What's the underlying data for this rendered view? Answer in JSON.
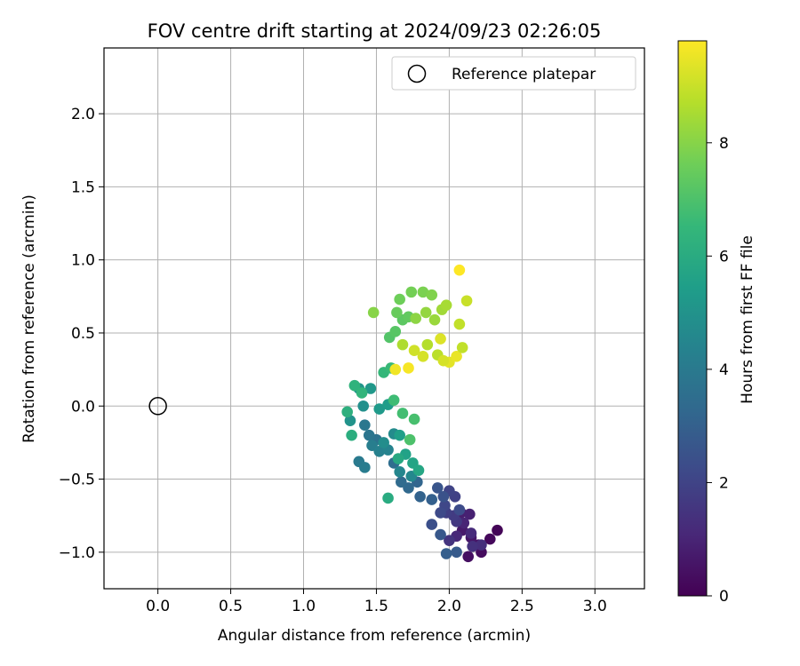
{
  "chart_data": {
    "type": "scatter",
    "title": "FOV centre drift starting at 2024/09/23 02:26:05",
    "xlabel": "Angular distance from reference (arcmin)",
    "ylabel": "Rotation from reference (arcmin)",
    "xlim": [
      -0.37,
      3.34
    ],
    "ylim": [
      -1.25,
      2.45
    ],
    "x_ticks": [
      0.0,
      0.5,
      1.0,
      1.5,
      2.0,
      2.5,
      3.0
    ],
    "x_tick_labels": [
      "0.0",
      "0.5",
      "1.0",
      "1.5",
      "2.0",
      "2.5",
      "3.0"
    ],
    "y_ticks": [
      -1.0,
      -0.5,
      0.0,
      0.5,
      1.0,
      1.5,
      2.0
    ],
    "y_tick_labels": [
      "−1.0",
      "−0.5",
      "0.0",
      "0.5",
      "1.0",
      "1.5",
      "2.0"
    ],
    "grid": true,
    "legend": {
      "position": "top-right",
      "entries": [
        {
          "label": "Reference platepar",
          "marker": "open-circle"
        }
      ]
    },
    "reference_point": {
      "x": 0.0,
      "y": 0.0
    },
    "colorbar": {
      "label": "Hours from first FF file",
      "range": [
        0,
        9.8
      ],
      "ticks": [
        0,
        2,
        4,
        6,
        8
      ],
      "tick_labels": [
        "0",
        "2",
        "4",
        "6",
        "8"
      ],
      "colormap": "viridis",
      "colors": [
        "#440154",
        "#482878",
        "#3e4989",
        "#31688e",
        "#26828e",
        "#1f9e89",
        "#35b779",
        "#6ece58",
        "#b5de2b",
        "#fde725"
      ]
    },
    "points": [
      [
        2.33,
        -0.85,
        0.1
      ],
      [
        2.28,
        -0.91,
        0.2
      ],
      [
        2.22,
        -1.0,
        0.3
      ],
      [
        2.13,
        -1.03,
        0.4
      ],
      [
        2.2,
        -0.95,
        0.5
      ],
      [
        2.15,
        -0.9,
        0.6
      ],
      [
        2.09,
        -0.85,
        0.7
      ],
      [
        2.08,
        -0.73,
        0.8
      ],
      [
        2.14,
        -0.74,
        0.9
      ],
      [
        2.1,
        -0.8,
        1.0
      ],
      [
        2.05,
        -0.89,
        1.1
      ],
      [
        2.15,
        -0.87,
        1.2
      ],
      [
        2.22,
        -0.95,
        1.3
      ],
      [
        2.16,
        -0.96,
        1.4
      ],
      [
        2.0,
        -0.92,
        1.5
      ],
      [
        2.05,
        -0.79,
        1.6
      ],
      [
        2.03,
        -0.75,
        1.7
      ],
      [
        1.98,
        -0.73,
        1.8
      ],
      [
        2.04,
        -0.62,
        1.9
      ],
      [
        2.0,
        -0.58,
        2.0
      ],
      [
        1.97,
        -0.68,
        2.1
      ],
      [
        1.94,
        -0.73,
        2.2
      ],
      [
        2.07,
        -0.71,
        2.3
      ],
      [
        1.88,
        -0.81,
        2.4
      ],
      [
        1.96,
        -0.62,
        2.5
      ],
      [
        1.92,
        -0.56,
        2.6
      ],
      [
        1.94,
        -0.88,
        2.7
      ],
      [
        2.05,
        -1.0,
        2.8
      ],
      [
        1.98,
        -1.01,
        2.9
      ],
      [
        1.88,
        -0.64,
        3.0
      ],
      [
        1.8,
        -0.62,
        3.1
      ],
      [
        1.78,
        -0.52,
        3.2
      ],
      [
        1.72,
        -0.56,
        3.3
      ],
      [
        1.67,
        -0.52,
        3.4
      ],
      [
        1.62,
        -0.39,
        3.5
      ],
      [
        1.56,
        -0.29,
        3.6
      ],
      [
        1.5,
        -0.23,
        3.7
      ],
      [
        1.45,
        -0.2,
        3.8
      ],
      [
        1.42,
        -0.13,
        3.9
      ],
      [
        1.38,
        -0.38,
        4.0
      ],
      [
        1.42,
        -0.42,
        4.1
      ],
      [
        1.47,
        -0.27,
        4.2
      ],
      [
        1.52,
        -0.31,
        4.3
      ],
      [
        1.58,
        -0.3,
        4.4
      ],
      [
        1.66,
        -0.45,
        4.5
      ],
      [
        1.74,
        -0.48,
        4.6
      ],
      [
        1.62,
        -0.19,
        4.7
      ],
      [
        1.55,
        -0.25,
        4.8
      ],
      [
        1.41,
        0.0,
        4.9
      ],
      [
        1.32,
        -0.1,
        5.0
      ],
      [
        1.38,
        0.12,
        5.1
      ],
      [
        1.46,
        0.12,
        5.2
      ],
      [
        1.52,
        -0.02,
        5.3
      ],
      [
        1.58,
        0.01,
        5.4
      ],
      [
        1.66,
        -0.2,
        5.5
      ],
      [
        1.7,
        -0.33,
        5.6
      ],
      [
        1.75,
        -0.39,
        5.7
      ],
      [
        1.79,
        -0.44,
        5.8
      ],
      [
        1.65,
        -0.36,
        5.9
      ],
      [
        1.58,
        -0.63,
        6.0
      ],
      [
        1.33,
        -0.2,
        6.1
      ],
      [
        1.3,
        -0.04,
        6.2
      ],
      [
        1.35,
        0.14,
        6.3
      ],
      [
        1.4,
        0.09,
        6.4
      ],
      [
        1.55,
        0.23,
        6.5
      ],
      [
        1.6,
        0.26,
        6.6
      ],
      [
        1.62,
        0.04,
        6.7
      ],
      [
        1.68,
        -0.05,
        6.8
      ],
      [
        1.76,
        -0.09,
        6.9
      ],
      [
        1.73,
        -0.23,
        7.0
      ],
      [
        1.59,
        0.47,
        7.1
      ],
      [
        1.63,
        0.51,
        7.2
      ],
      [
        1.68,
        0.59,
        7.3
      ],
      [
        1.72,
        0.61,
        7.4
      ],
      [
        1.64,
        0.64,
        7.5
      ],
      [
        1.66,
        0.73,
        7.6
      ],
      [
        1.74,
        0.78,
        7.7
      ],
      [
        1.82,
        0.78,
        7.8
      ],
      [
        1.88,
        0.76,
        7.9
      ],
      [
        1.48,
        0.64,
        8.0
      ],
      [
        1.77,
        0.6,
        8.1
      ],
      [
        1.84,
        0.64,
        8.2
      ],
      [
        1.9,
        0.59,
        8.3
      ],
      [
        1.95,
        0.66,
        8.4
      ],
      [
        1.98,
        0.69,
        8.5
      ],
      [
        1.68,
        0.42,
        8.6
      ],
      [
        1.85,
        0.42,
        8.7
      ],
      [
        1.92,
        0.35,
        8.8
      ],
      [
        2.07,
        0.56,
        8.9
      ],
      [
        2.12,
        0.72,
        9.0
      ],
      [
        1.76,
        0.38,
        9.1
      ],
      [
        1.82,
        0.34,
        9.2
      ],
      [
        1.94,
        0.46,
        9.3
      ],
      [
        2.0,
        0.3,
        9.4
      ],
      [
        2.05,
        0.34,
        9.5
      ],
      [
        1.63,
        0.25,
        9.6
      ],
      [
        1.72,
        0.26,
        9.7
      ],
      [
        2.07,
        0.93,
        9.8
      ],
      [
        1.96,
        0.31,
        9.2
      ],
      [
        2.09,
        0.4,
        8.9
      ]
    ]
  }
}
